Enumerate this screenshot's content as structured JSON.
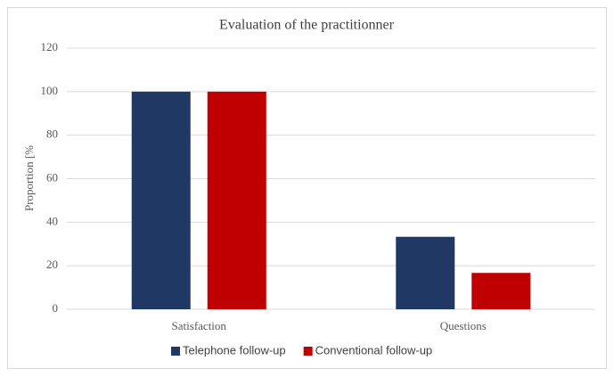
{
  "chart_data": {
    "type": "bar",
    "title": "Evaluation of the practitionner",
    "y_label": "Proportion [%",
    "categories": [
      "Satisfaction",
      "Questions"
    ],
    "series": [
      {
        "name": "Telephone follow-up",
        "color": "#203864",
        "values": [
          100,
          33.3
        ]
      },
      {
        "name": "Conventional follow-up",
        "color": "#c00000",
        "values": [
          100,
          16.7
        ]
      }
    ],
    "ylim": [
      0,
      120
    ],
    "yticks": [
      0,
      20,
      40,
      60,
      80,
      100,
      120
    ],
    "grid": true,
    "legend": "bottom"
  }
}
